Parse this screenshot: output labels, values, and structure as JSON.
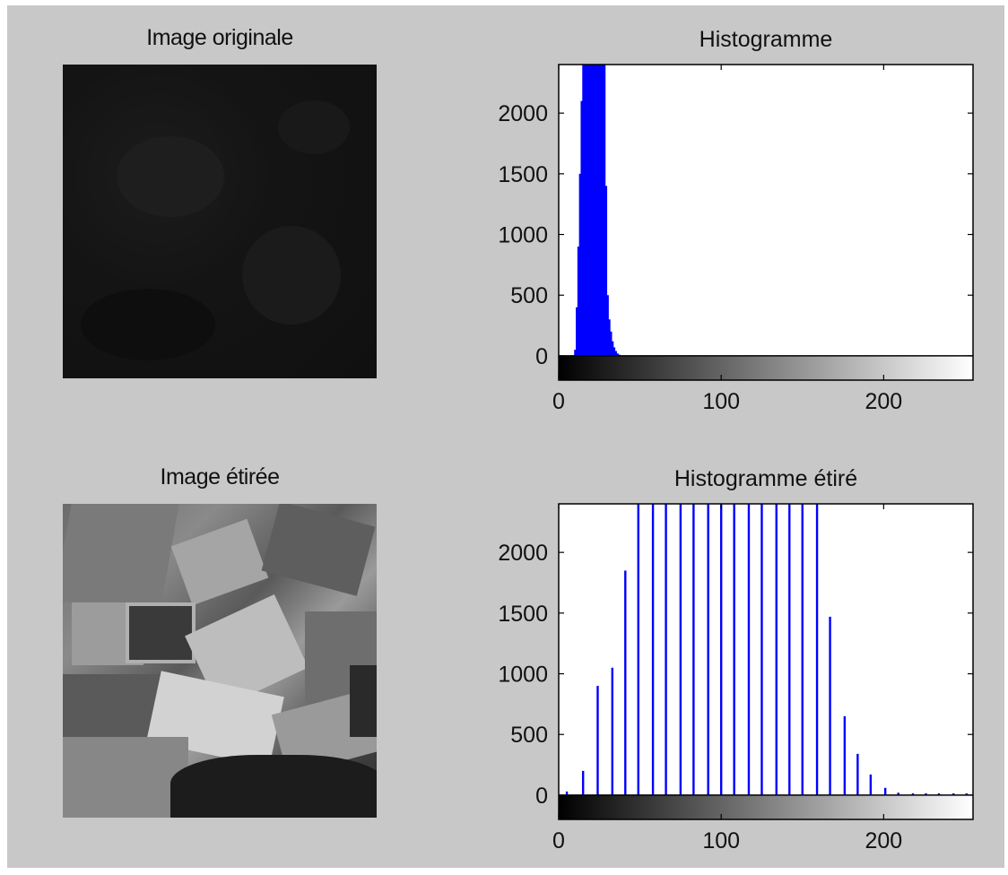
{
  "figure": {
    "background_color": "#c8c8c8",
    "panels": {
      "image_original_title": "Image originale",
      "image_stretched_title": "Image étirée"
    }
  },
  "chart_data": [
    {
      "type": "bar",
      "title": "Histogramme",
      "xlabel": "",
      "ylabel": "",
      "xlim": [
        0,
        255
      ],
      "ylim": [
        -200,
        2400
      ],
      "x_ticks": [
        0,
        100,
        200
      ],
      "y_ticks": [
        0,
        500,
        1000,
        1500,
        2000
      ],
      "grid": false,
      "colorbar": "grayscale 0-255 below x-axis",
      "bar_color": "#0000ff",
      "x": [
        10,
        11,
        12,
        13,
        14,
        15,
        16,
        17,
        18,
        19,
        20,
        21,
        22,
        23,
        24,
        25,
        26,
        27,
        28,
        29,
        30,
        31,
        32,
        33,
        34,
        35,
        36,
        37
      ],
      "values": [
        50,
        400,
        900,
        1500,
        2100,
        2400,
        2400,
        2400,
        2400,
        2400,
        2400,
        2400,
        2400,
        2400,
        2400,
        2400,
        2400,
        2400,
        2400,
        1400,
        500,
        300,
        200,
        120,
        70,
        40,
        20,
        10
      ]
    },
    {
      "type": "bar",
      "title": "Histogramme étiré",
      "xlabel": "",
      "ylabel": "",
      "xlim": [
        0,
        255
      ],
      "ylim": [
        -200,
        2400
      ],
      "x_ticks": [
        0,
        100,
        200
      ],
      "y_ticks": [
        0,
        500,
        1000,
        1500,
        2000
      ],
      "grid": false,
      "colorbar": "grayscale 0-255 below x-axis",
      "bar_color": "#0000ff",
      "x": [
        5,
        15,
        24,
        33,
        41,
        49,
        58,
        66,
        75,
        83,
        92,
        100,
        108,
        117,
        125,
        134,
        142,
        150,
        159,
        167,
        176,
        184,
        192,
        201,
        209,
        218,
        226,
        234,
        243,
        251
      ],
      "values": [
        30,
        200,
        900,
        1050,
        1850,
        2400,
        2400,
        2400,
        2400,
        2400,
        2400,
        2400,
        2400,
        2400,
        2400,
        2400,
        2400,
        2400,
        2400,
        1470,
        650,
        340,
        170,
        60,
        20,
        15,
        15,
        15,
        15,
        15
      ]
    }
  ]
}
